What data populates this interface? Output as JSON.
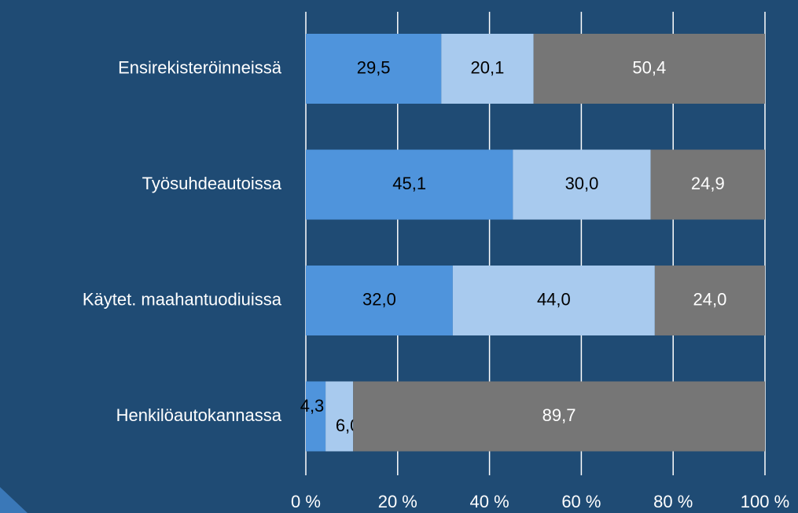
{
  "chart_data": {
    "type": "stacked_barh",
    "categories": [
      "Ensirekisteröinneissä",
      "Työsuhdeautoissa",
      "Käytet. maahantuodiuissa",
      "Henkilöautokannassa"
    ],
    "series": [
      {
        "color": "#4f94dc",
        "label_color": "#000000",
        "values": [
          29.5,
          45.1,
          32.0,
          4.3
        ],
        "value_labels": [
          "29,5",
          "45,1",
          "32,0",
          "4,3"
        ]
      },
      {
        "color": "#a8caee",
        "label_color": "#000000",
        "values": [
          20.1,
          30.0,
          44.0,
          6.0
        ],
        "value_labels": [
          "20,1",
          "30,0",
          "44,0",
          "6,0"
        ]
      },
      {
        "color": "#767676",
        "label_color": "#ffffff",
        "values": [
          50.4,
          24.9,
          24.0,
          89.7
        ],
        "value_labels": [
          "50,4",
          "24,9",
          "24,0",
          "89,7"
        ]
      }
    ],
    "xlim": [
      0,
      100
    ],
    "xticks": [
      {
        "value": 0,
        "label": "0 %"
      },
      {
        "value": 20,
        "label": "20 %"
      },
      {
        "value": 40,
        "label": "40 %"
      },
      {
        "value": 60,
        "label": "60 %"
      },
      {
        "value": 80,
        "label": "80 %"
      },
      {
        "value": 100,
        "label": "100 %"
      }
    ],
    "grid": true
  }
}
